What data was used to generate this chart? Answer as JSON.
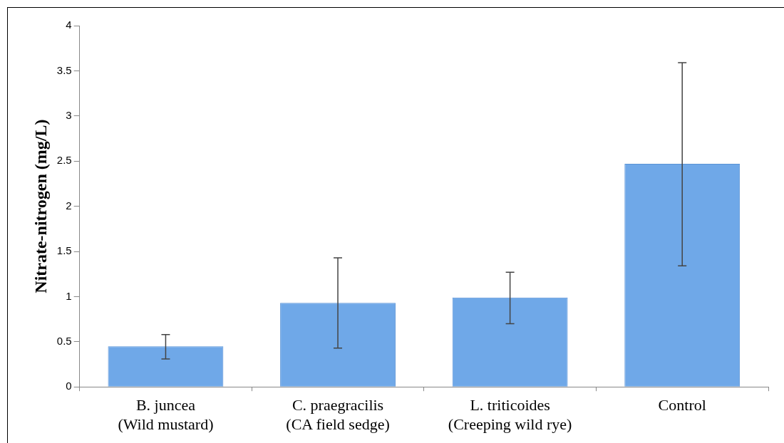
{
  "chart_data": {
    "type": "bar",
    "ylabel": "Nitrate-nitrogen (mg/L)",
    "categories": [
      "B. juncea\n(Wild mustard)",
      "C. praegracilis\n(CA field sedge)",
      "L. triticoides\n(Creeping wild rye)",
      "Control"
    ],
    "values": [
      0.45,
      0.93,
      0.99,
      2.47
    ],
    "errors": [
      [
        0.31,
        0.58
      ],
      [
        0.43,
        1.43
      ],
      [
        0.7,
        1.27
      ],
      [
        1.34,
        3.59
      ]
    ],
    "color": "#6fa8e8",
    "ylim": [
      0,
      4
    ],
    "yticks": [
      0,
      0.5,
      1,
      1.5,
      2,
      2.5,
      3,
      3.5,
      4
    ],
    "grid": false,
    "legend": false
  }
}
